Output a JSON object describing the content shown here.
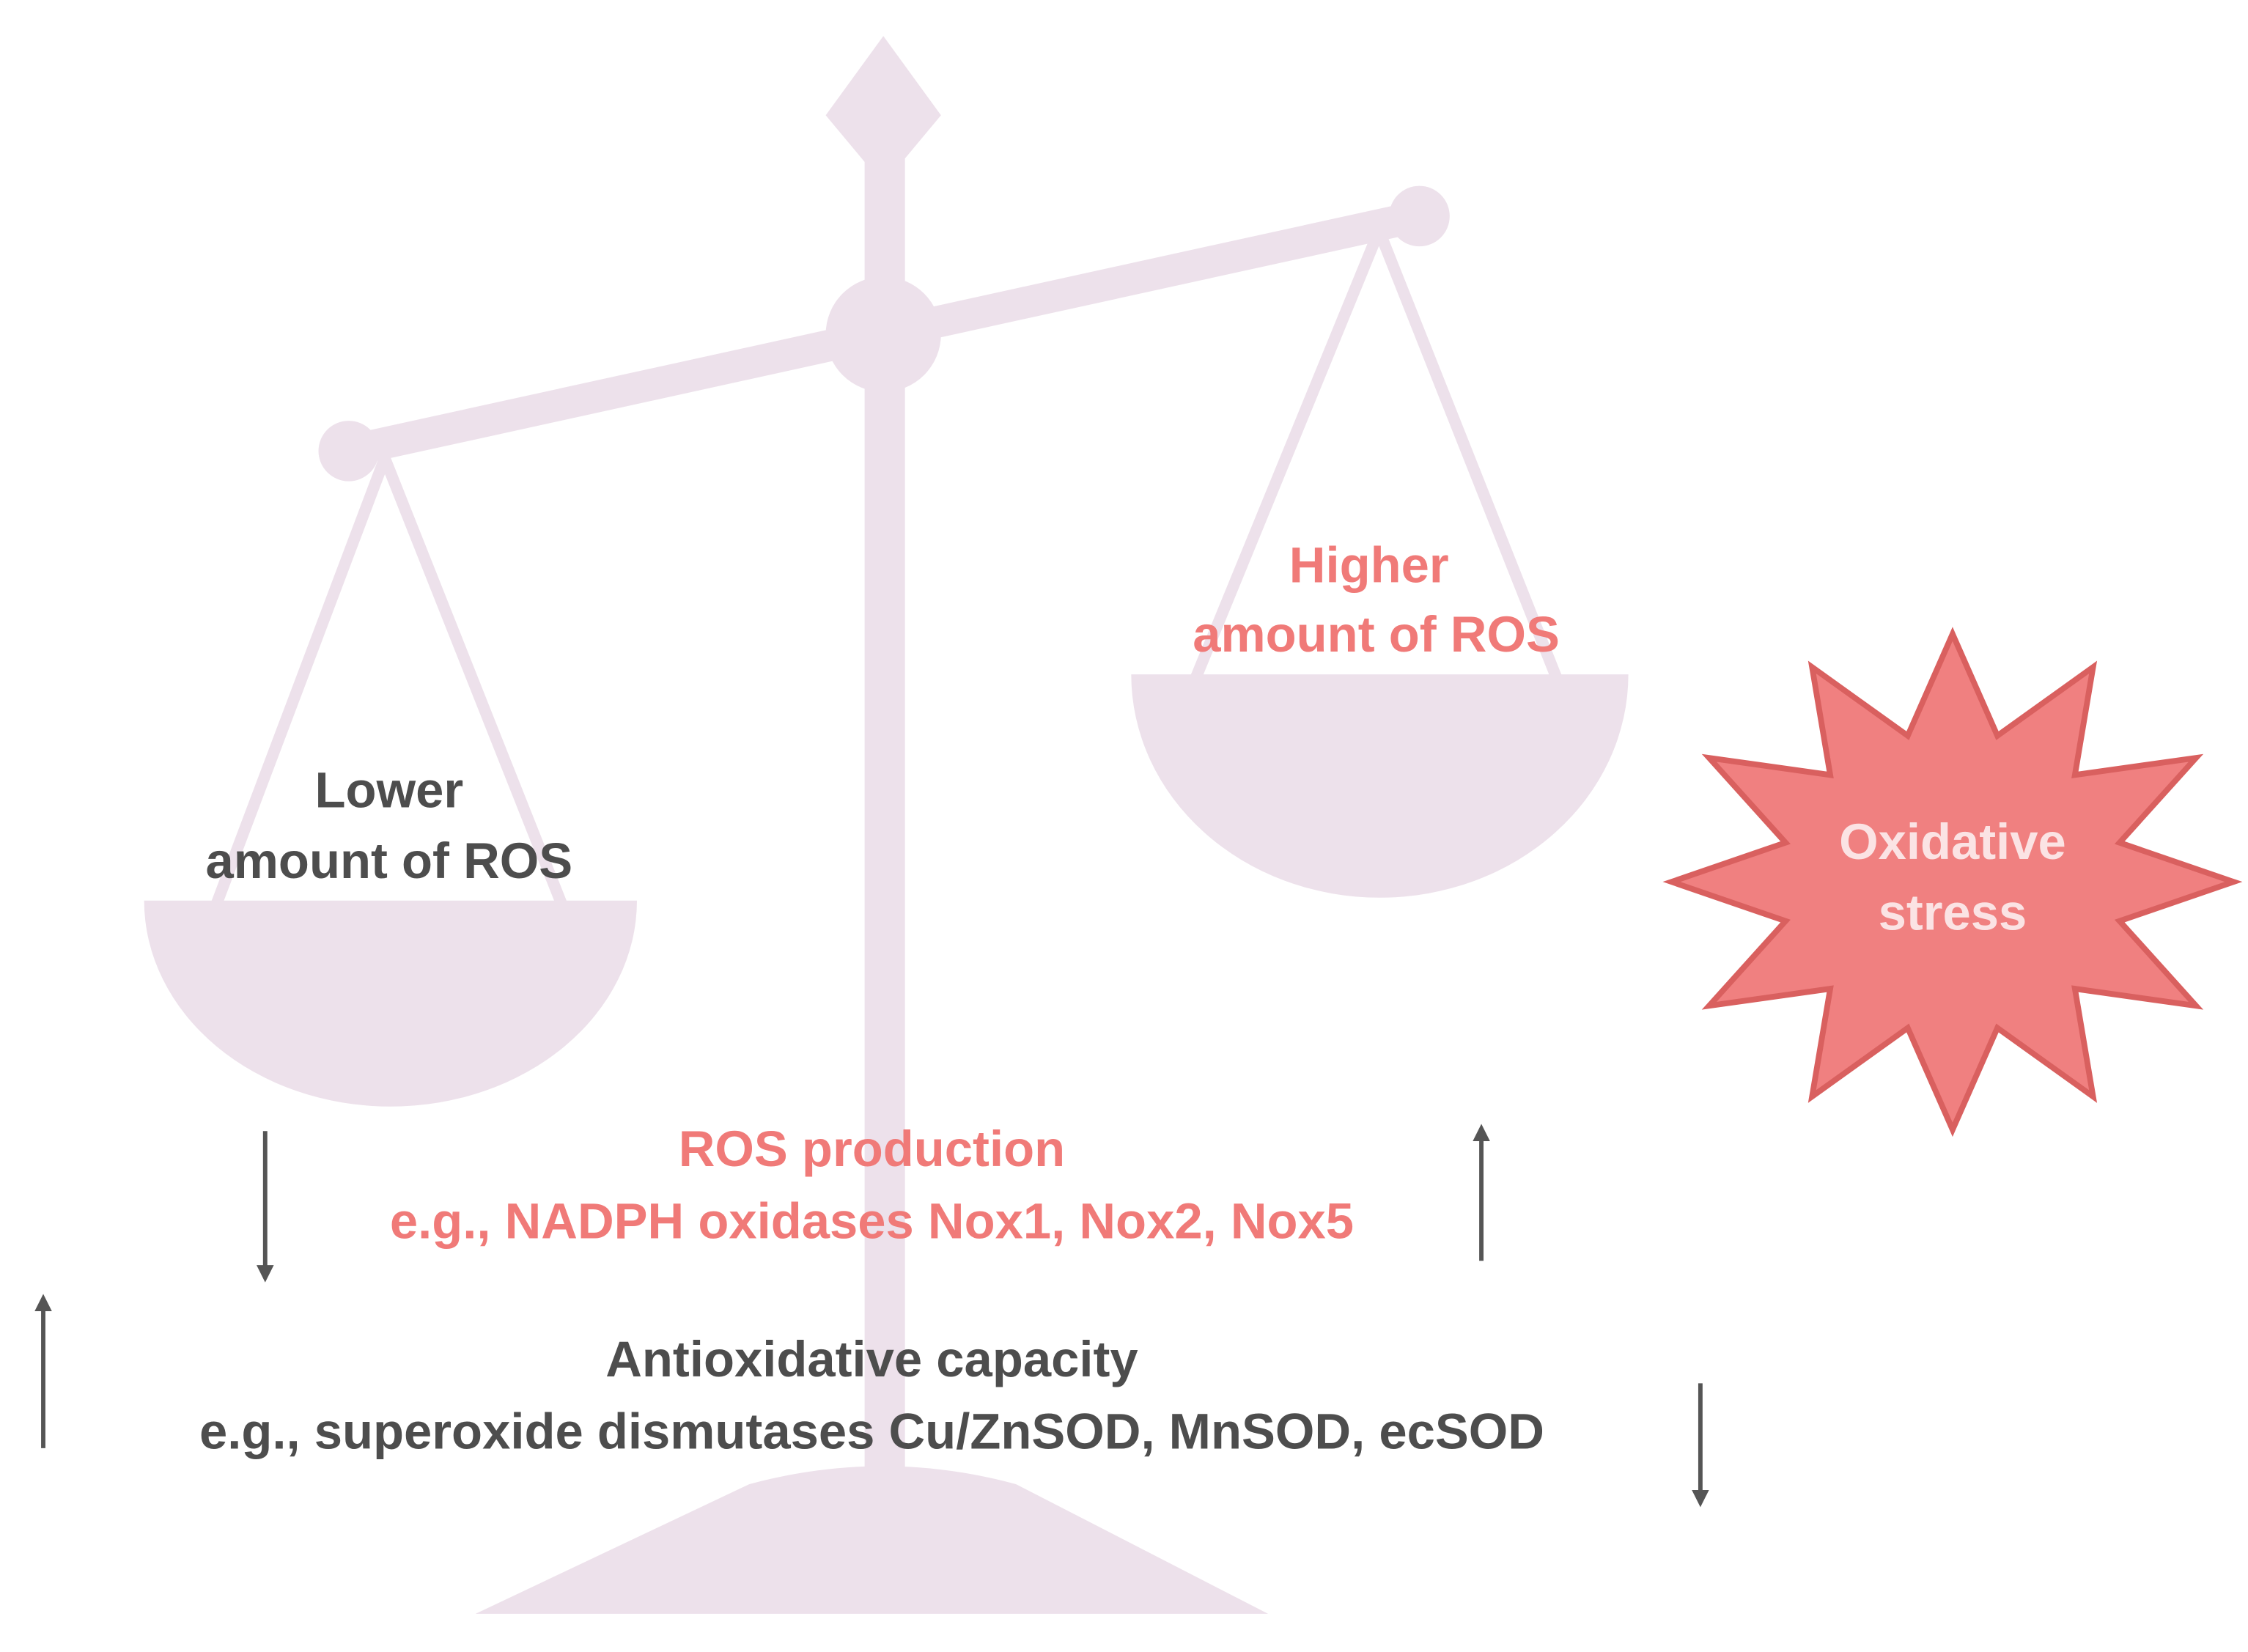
{
  "left_pan": {
    "lines": [
      "Lower",
      "amount of ROS"
    ]
  },
  "right_pan": {
    "lines": [
      "Higher",
      "amount of ROS"
    ]
  },
  "burst": {
    "lines": [
      "Oxidative",
      "stress"
    ]
  },
  "ros_production": {
    "title": "ROS production",
    "example": "e.g., NADPH oxidases Nox1, Nox2, Nox5"
  },
  "antioxidative": {
    "title": "Antioxidative capacity",
    "example": "e.g., superoxide dismutases Cu/ZnSOD, MnSOD, ecSOD"
  }
}
